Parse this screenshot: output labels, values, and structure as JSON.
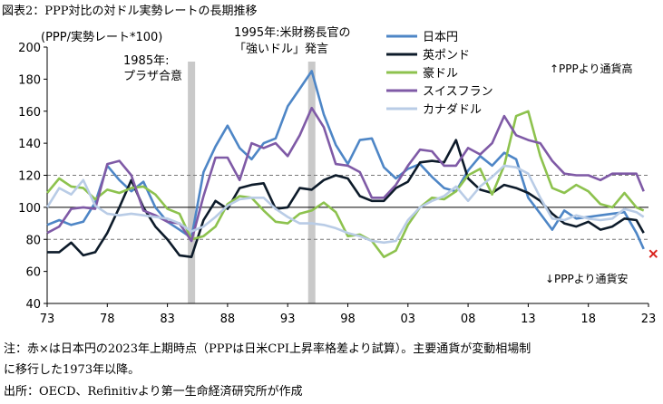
{
  "caption": "図表2：PPP対比の対ドル実勢レートの長期推移",
  "notes": [
    "注：赤×は日本円の2023年上期時点（PPPは日米CPI上昇率格差より試算）。主要通貨が変動相場制",
    "に移行した1973年以降。",
    "出所：OECD、Refinitivより第一生命経済研究所が作成"
  ],
  "colors": {
    "jpy": "#4e86c6",
    "gbp": "#0d1b2a",
    "aud": "#8dc24e",
    "chf": "#7f5aa6",
    "cad": "#b9cce6",
    "marker": "#d9231d",
    "shade": "#c9c9c9"
  },
  "chart_data": {
    "type": "line",
    "ylabel": "(PPP/実勢レート*100)",
    "ylim": [
      40,
      200
    ],
    "yticks": [
      40,
      60,
      80,
      100,
      120,
      140,
      160,
      180,
      200
    ],
    "xlim": [
      1973,
      2023
    ],
    "xticks": [
      1973,
      1978,
      1983,
      1988,
      1993,
      1998,
      2003,
      2008,
      2013,
      2018,
      2023
    ],
    "xtick_labels": [
      "73",
      "78",
      "83",
      "88",
      "93",
      "98",
      "03",
      "08",
      "13",
      "18",
      "23"
    ],
    "reference_lines": [
      {
        "y": 100,
        "style": "solid"
      },
      {
        "y": 120,
        "style": "dashed"
      },
      {
        "y": 80,
        "style": "dashed"
      }
    ],
    "shaded_periods": [
      {
        "year": 1985,
        "label_lines": [
          "1985年:",
          "プラザ合意"
        ]
      },
      {
        "year": 1995,
        "label_lines": [
          "1995年:米財務長官の",
          "「強いドル」発言"
        ]
      }
    ],
    "annotations": {
      "upper": "↑PPPより通貨高",
      "lower": "↓PPPより通貨安"
    },
    "marker": {
      "name": "日本円 2023年上期",
      "x": 2023.4,
      "y": 71
    },
    "series": [
      {
        "name": "日本円",
        "key": "jpy",
        "x": [
          1973,
          1974,
          1975,
          1976,
          1977,
          1978,
          1979,
          1980,
          1981,
          1982,
          1983,
          1984,
          1985,
          1986,
          1987,
          1988,
          1989,
          1990,
          1991,
          1992,
          1993,
          1994,
          1995,
          1996,
          1997,
          1998,
          1999,
          2000,
          2001,
          2002,
          2003,
          2004,
          2005,
          2006,
          2007,
          2008,
          2009,
          2010,
          2011,
          2012,
          2013,
          2014,
          2015,
          2016,
          2017,
          2018,
          2019,
          2020,
          2021,
          2022,
          2022.6
        ],
        "y": [
          89,
          92,
          89,
          91,
          103,
          126,
          117,
          110,
          116,
          100,
          91,
          86,
          81,
          122,
          138,
          151,
          137,
          130,
          140,
          143,
          163,
          174,
          185,
          158,
          139,
          127,
          142,
          143,
          125,
          118,
          124,
          127,
          119,
          112,
          110,
          123,
          132,
          126,
          134,
          130,
          106,
          96,
          86,
          98,
          93,
          94,
          95,
          96,
          97,
          84,
          74
        ]
      },
      {
        "name": "英ポンド",
        "key": "gbp",
        "x": [
          1973,
          1974,
          1975,
          1976,
          1977,
          1978,
          1979,
          1980,
          1981,
          1982,
          1983,
          1984,
          1985,
          1986,
          1987,
          1988,
          1989,
          1990,
          1991,
          1992,
          1993,
          1994,
          1995,
          1996,
          1997,
          1998,
          1999,
          2000,
          2001,
          2002,
          2003,
          2004,
          2005,
          2006,
          2007,
          2008,
          2009,
          2010,
          2011,
          2012,
          2013,
          2014,
          2015,
          2016,
          2017,
          2018,
          2019,
          2020,
          2021,
          2022,
          2022.6
        ],
        "y": [
          72,
          72,
          78,
          70,
          72,
          84,
          100,
          117,
          100,
          88,
          80,
          70,
          69,
          92,
          104,
          99,
          112,
          114,
          115,
          99,
          100,
          112,
          111,
          117,
          120,
          118,
          107,
          104,
          104,
          112,
          116,
          128,
          129,
          128,
          142,
          118,
          111,
          109,
          114,
          112,
          109,
          104,
          96,
          90,
          88,
          91,
          86,
          88,
          93,
          92,
          84
        ]
      },
      {
        "name": "豪ドル",
        "key": "aud",
        "x": [
          1973,
          1974,
          1975,
          1976,
          1977,
          1978,
          1979,
          1980,
          1981,
          1982,
          1983,
          1984,
          1985,
          1986,
          1987,
          1988,
          1989,
          1990,
          1991,
          1992,
          1993,
          1994,
          1995,
          1996,
          1997,
          1998,
          1999,
          2000,
          2001,
          2002,
          2003,
          2004,
          2005,
          2006,
          2007,
          2008,
          2009,
          2010,
          2011,
          2012,
          2013,
          2014,
          2015,
          2016,
          2017,
          2018,
          2019,
          2020,
          2021,
          2022,
          2022.6
        ],
        "y": [
          109,
          118,
          113,
          112,
          105,
          111,
          109,
          112,
          113,
          108,
          99,
          96,
          80,
          82,
          88,
          102,
          107,
          106,
          98,
          91,
          90,
          96,
          98,
          103,
          97,
          82,
          83,
          79,
          69,
          73,
          89,
          100,
          106,
          105,
          110,
          120,
          124,
          108,
          126,
          157,
          160,
          132,
          112,
          109,
          114,
          110,
          102,
          100,
          109,
          100,
          98
        ]
      },
      {
        "name": "スイスフラン",
        "key": "chf",
        "x": [
          1973,
          1974,
          1975,
          1976,
          1977,
          1978,
          1979,
          1980,
          1981,
          1982,
          1983,
          1984,
          1985,
          1986,
          1987,
          1988,
          1989,
          1990,
          1991,
          1992,
          1993,
          1994,
          1995,
          1996,
          1997,
          1998,
          1999,
          2000,
          2001,
          2002,
          2003,
          2004,
          2005,
          2006,
          2007,
          2008,
          2009,
          2010,
          2011,
          2012,
          2013,
          2014,
          2015,
          2016,
          2017,
          2018,
          2019,
          2020,
          2021,
          2022,
          2022.6
        ],
        "y": [
          84,
          88,
          99,
          100,
          99,
          127,
          129,
          120,
          98,
          95,
          91,
          90,
          79,
          107,
          131,
          131,
          117,
          140,
          137,
          140,
          132,
          145,
          162,
          150,
          127,
          126,
          122,
          106,
          106,
          114,
          126,
          136,
          135,
          126,
          126,
          137,
          133,
          140,
          157,
          145,
          142,
          140,
          129,
          121,
          120,
          120,
          117,
          121,
          121,
          121,
          110
        ]
      },
      {
        "name": "カナダドル",
        "key": "cad",
        "x": [
          1973,
          1974,
          1975,
          1976,
          1977,
          1978,
          1979,
          1980,
          1981,
          1982,
          1983,
          1984,
          1985,
          1986,
          1987,
          1988,
          1989,
          1990,
          1991,
          1992,
          1993,
          1994,
          1995,
          1996,
          1997,
          1998,
          1999,
          2000,
          2001,
          2002,
          2003,
          2004,
          2005,
          2006,
          2007,
          2008,
          2009,
          2010,
          2011,
          2012,
          2013,
          2014,
          2015,
          2016,
          2017,
          2018,
          2019,
          2020,
          2021,
          2022,
          2022.6
        ],
        "y": [
          100,
          112,
          108,
          117,
          101,
          96,
          95,
          96,
          95,
          94,
          93,
          90,
          85,
          88,
          94,
          101,
          105,
          106,
          106,
          99,
          94,
          90,
          90,
          89,
          87,
          84,
          82,
          79,
          78,
          79,
          92,
          100,
          104,
          107,
          113,
          104,
          113,
          119,
          126,
          125,
          121,
          106,
          93,
          92,
          95,
          93,
          92,
          93,
          99,
          97,
          94
        ]
      }
    ]
  }
}
